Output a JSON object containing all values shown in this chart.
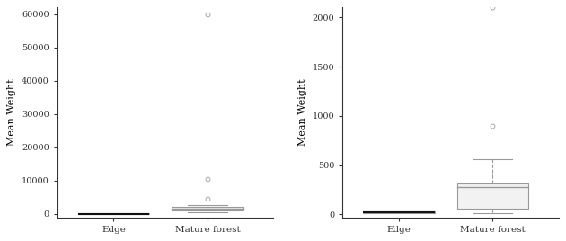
{
  "left_plot": {
    "ylabel": "Mean Weight",
    "categories": [
      "Edge",
      "Mature forest"
    ],
    "edge_box": {
      "median": 50,
      "q1": 30,
      "q3": 80,
      "whisker_low": 10,
      "whisker_high": 100,
      "outliers": []
    },
    "mature_box": {
      "median": 1600,
      "q1": 1000,
      "q3": 2200,
      "whisker_low": 400,
      "whisker_high": 2800,
      "outliers": [
        4500,
        10500,
        60000
      ]
    },
    "ylim": [
      -1000,
      62000
    ],
    "yticks": [
      0,
      10000,
      20000,
      30000,
      40000,
      50000,
      60000
    ]
  },
  "right_plot": {
    "ylabel": "Mean Weight",
    "categories": [
      "Edge",
      "Mature forest"
    ],
    "edge_box": {
      "median": 20,
      "q1": 10,
      "q3": 35,
      "whisker_low": 5,
      "whisker_high": 50,
      "outliers": []
    },
    "mature_box": {
      "median": 280,
      "q1": 60,
      "q3": 310,
      "whisker_low": 15,
      "whisker_high": 560,
      "outliers": [
        900,
        2100
      ]
    },
    "ylim": [
      -30,
      2100
    ],
    "yticks": [
      0,
      500,
      1000,
      1500,
      2000
    ]
  },
  "box_facecolor": "#f2f2f2",
  "box_edgecolor": "#999999",
  "median_color": "#999999",
  "whisker_color": "#999999",
  "outlier_color": "#aaaaaa",
  "edge_line_color": "#111111",
  "background_color": "#ffffff",
  "font_family": "DejaVu Serif",
  "axis_color": "#333333",
  "spine_color": "#333333"
}
